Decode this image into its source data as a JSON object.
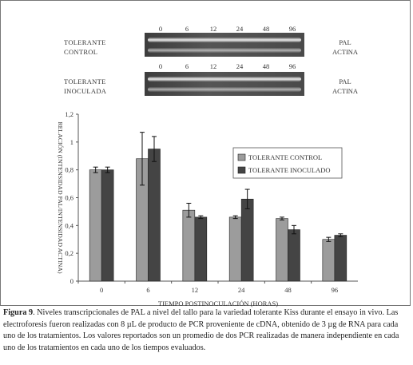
{
  "gels": [
    {
      "time_points": [
        "0",
        "6",
        "12",
        "24",
        "48",
        "96"
      ],
      "sample_label": [
        "TOLERANTE",
        "CONTROL"
      ],
      "band_labels": [
        "PAL",
        "ACTINA"
      ]
    },
    {
      "time_points": [
        "0",
        "6",
        "12",
        "24",
        "48",
        "96"
      ],
      "sample_label": [
        "TOLERANTE",
        "INOCULADA"
      ],
      "band_labels": [
        "PAL",
        "ACTINA"
      ]
    }
  ],
  "chart_data": {
    "type": "bar",
    "categories": [
      "0",
      "6",
      "12",
      "24",
      "48",
      "96"
    ],
    "series": [
      {
        "name": "TOLERANTE CONTROL",
        "values": [
          0.8,
          0.88,
          0.51,
          0.46,
          0.45,
          0.3
        ],
        "errors": [
          0.02,
          0.19,
          0.05,
          0.01,
          0.01,
          0.015
        ],
        "color": "#9c9c9c"
      },
      {
        "name": "TOLERANTE INOCULADO",
        "values": [
          0.8,
          0.95,
          0.46,
          0.59,
          0.37,
          0.33
        ],
        "errors": [
          0.02,
          0.09,
          0.01,
          0.07,
          0.03,
          0.01
        ],
        "color": "#444444"
      }
    ],
    "xlabel": "TIEMPO POSTINOCULACIÓN (HORAS)",
    "ylabel": "RELACIÓN (INTENSIDAD PAL/INTENSIDAD ACTINA)",
    "ylim": [
      0,
      1.2
    ],
    "yticks": [
      "0",
      "0,2",
      "0,4",
      "0,6",
      "0,8",
      "1",
      "1,2"
    ],
    "grid": false,
    "legend_position": "right"
  },
  "caption": {
    "label": "Figura 9",
    "text": ". Niveles transcripcionales de PAL a nivel del tallo para la variedad tolerante Kiss durante el ensayo in vivo. Las electroforesis fueron realizadas con 8 µL de producto de PCR proveniente de cDNA, obtenido de 3 µg de RNA para cada uno de los tratamientos. Los valores reportados son un promedio de dos PCR realizadas de manera independiente en cada uno de los tratamientos en cada uno de los tiempos evaluados."
  }
}
